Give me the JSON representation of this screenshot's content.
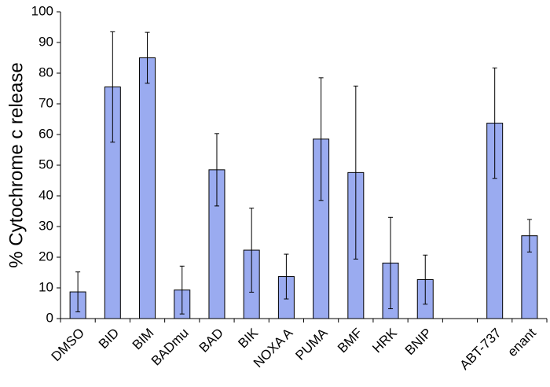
{
  "chart_data": {
    "type": "bar",
    "y_label": "% Cytochrome c release",
    "categories": [
      "DMSO",
      "BID",
      "BIM",
      "BADmu",
      "BAD",
      "BIK",
      "NOXA A",
      "PUMA",
      "BMF",
      "HRK",
      "BNIP",
      null,
      "ABT-737",
      "enant"
    ],
    "values": [
      8.7,
      75.5,
      85,
      9.3,
      48.5,
      22.3,
      13.7,
      58.5,
      47.6,
      18.1,
      12.7,
      null,
      63.7,
      27
    ],
    "errors": [
      6.5,
      18,
      8.3,
      7.8,
      11.8,
      13.7,
      7.3,
      20,
      28.2,
      14.9,
      8,
      null,
      18,
      5.3
    ],
    "color": "#9aabf0",
    "ylim": [
      0,
      100
    ],
    "yticks": [
      0,
      10,
      20,
      30,
      40,
      50,
      60,
      70,
      80,
      90,
      100
    ],
    "grid": false
  }
}
